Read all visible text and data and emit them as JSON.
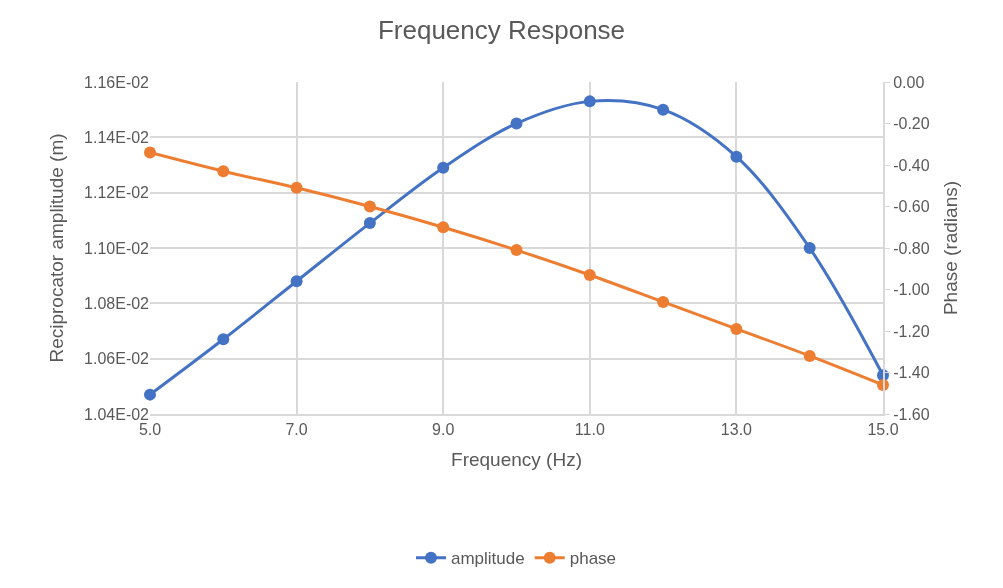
{
  "chart_data": {
    "type": "line",
    "title": "Frequency Response",
    "xlabel": "Frequency (Hz)",
    "ylabel": "Reciprocator amplitude (m)",
    "y2label": "Phase (radians)",
    "x": [
      5,
      6,
      7,
      8,
      9,
      10,
      11,
      12,
      13,
      14,
      15
    ],
    "series": [
      {
        "name": "amplitude",
        "color": "#4472c4",
        "values": [
          0.01047,
          0.01067,
          0.01088,
          0.01109,
          0.01129,
          0.01145,
          0.01153,
          0.0115,
          0.01133,
          0.011,
          0.01054
        ]
      },
      {
        "name": "phase",
        "color": "#ed7d31",
        "axis": "y2",
        "values": [
          -0.34,
          -0.43,
          -0.51,
          -0.6,
          -0.7,
          -0.81,
          -0.93,
          -1.06,
          -1.19,
          -1.32,
          -1.46
        ]
      }
    ],
    "xlim": [
      5,
      15
    ],
    "xticks": [
      {
        "value": 5,
        "label": "5.0"
      },
      {
        "value": 7,
        "label": "7.0"
      },
      {
        "value": 9,
        "label": "9.0"
      },
      {
        "value": 11,
        "label": "11.0"
      },
      {
        "value": 13,
        "label": "13.0"
      },
      {
        "value": 15,
        "label": "15.0"
      }
    ],
    "ylim": [
      0.0104,
      0.0116
    ],
    "yticks": [
      {
        "value": 0.0104,
        "label": "1.04E-02"
      },
      {
        "value": 0.0106,
        "label": "1.06E-02"
      },
      {
        "value": 0.0108,
        "label": "1.08E-02"
      },
      {
        "value": 0.011,
        "label": "1.10E-02"
      },
      {
        "value": 0.0112,
        "label": "1.12E-02"
      },
      {
        "value": 0.0114,
        "label": "1.14E-02"
      },
      {
        "value": 0.0116,
        "label": "1.16E-02"
      }
    ],
    "y2lim": [
      -1.6,
      0
    ],
    "y2ticks": [
      {
        "value": -1.6,
        "label": "-1.60"
      },
      {
        "value": -1.4,
        "label": "-1.40"
      },
      {
        "value": -1.2,
        "label": "-1.20"
      },
      {
        "value": -1.0,
        "label": "-1.00"
      },
      {
        "value": -0.8,
        "label": "-0.80"
      },
      {
        "value": -0.6,
        "label": "-0.60"
      },
      {
        "value": -0.4,
        "label": "-0.40"
      },
      {
        "value": -0.2,
        "label": "-0.20"
      },
      {
        "value": 0,
        "label": "0.00"
      }
    ],
    "grid": true,
    "legend": "bottom",
    "marker": "circle",
    "line_style": "solid"
  }
}
